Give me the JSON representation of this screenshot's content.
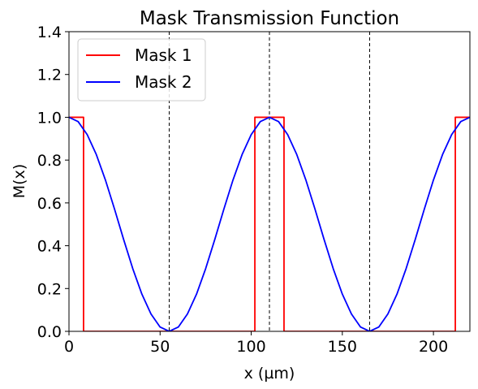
{
  "chart_data": {
    "type": "line",
    "title": "Mask Transmission Function",
    "xlabel": "x (µm)",
    "ylabel": "M(x)",
    "xlim": [
      0,
      220
    ],
    "ylim": [
      0,
      1.4
    ],
    "xticks": [
      0,
      50,
      100,
      150,
      200
    ],
    "yticks": [
      0.0,
      0.2,
      0.4,
      0.6,
      0.8,
      1.0,
      1.2,
      1.4
    ],
    "grid": false,
    "legend_position": "top-left",
    "vlines": [
      55,
      110,
      165
    ],
    "vline_color": "#000000",
    "series": [
      {
        "name": "Mask 1",
        "color": "#ff0000",
        "x": [
          0,
          8,
          8,
          102,
          102,
          118,
          118,
          212,
          212,
          220
        ],
        "y": [
          1,
          1,
          0,
          0,
          1,
          1,
          0,
          0,
          1,
          1
        ]
      },
      {
        "name": "Mask 2",
        "color": "#0000ff",
        "x": [
          0,
          5,
          10,
          15,
          20,
          25,
          30,
          35,
          40,
          45,
          50,
          55,
          60,
          65,
          70,
          75,
          80,
          85,
          90,
          95,
          100,
          105,
          110,
          115,
          120,
          125,
          130,
          135,
          140,
          145,
          150,
          155,
          160,
          165,
          170,
          175,
          180,
          185,
          190,
          195,
          200,
          205,
          210,
          215,
          220
        ],
        "y": [
          1.0,
          0.98,
          0.919,
          0.826,
          0.707,
          0.571,
          0.429,
          0.293,
          0.174,
          0.081,
          0.02,
          0.0,
          0.02,
          0.081,
          0.174,
          0.293,
          0.429,
          0.571,
          0.707,
          0.826,
          0.919,
          0.98,
          1.0,
          0.98,
          0.919,
          0.826,
          0.707,
          0.571,
          0.429,
          0.293,
          0.174,
          0.081,
          0.02,
          0.0,
          0.02,
          0.081,
          0.174,
          0.293,
          0.429,
          0.571,
          0.707,
          0.826,
          0.919,
          0.98,
          1.0
        ]
      }
    ]
  }
}
